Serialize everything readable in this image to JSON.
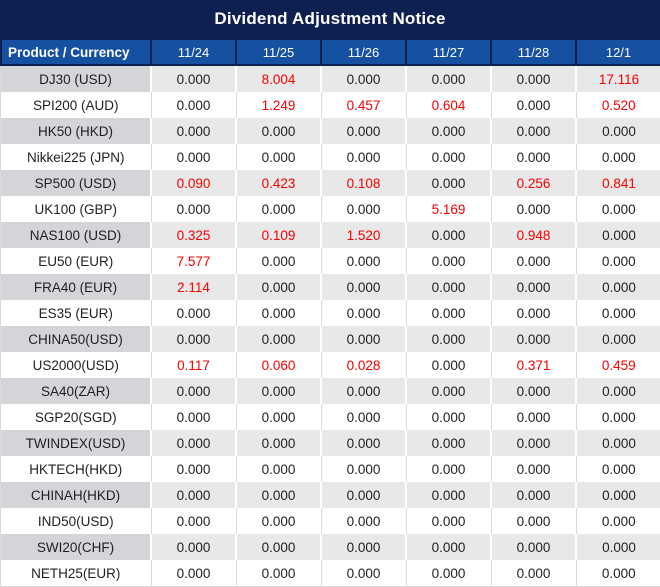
{
  "title": "Dividend Adjustment Notice",
  "table": {
    "product_header": "Product / Currency",
    "date_headers": [
      "11/24",
      "11/25",
      "11/26",
      "11/27",
      "11/28",
      "12/1"
    ],
    "rows": [
      {
        "product": "DJ30 (USD)",
        "values": [
          "0.000",
          "8.004",
          "0.000",
          "0.000",
          "0.000",
          "17.116"
        ]
      },
      {
        "product": "SPI200 (AUD)",
        "values": [
          "0.000",
          "1.249",
          "0.457",
          "0.604",
          "0.000",
          "0.520"
        ]
      },
      {
        "product": "HK50 (HKD)",
        "values": [
          "0.000",
          "0.000",
          "0.000",
          "0.000",
          "0.000",
          "0.000"
        ]
      },
      {
        "product": "Nikkei225 (JPN)",
        "values": [
          "0.000",
          "0.000",
          "0.000",
          "0.000",
          "0.000",
          "0.000"
        ]
      },
      {
        "product": "SP500 (USD)",
        "values": [
          "0.090",
          "0.423",
          "0.108",
          "0.000",
          "0.256",
          "0.841"
        ]
      },
      {
        "product": "UK100 (GBP)",
        "values": [
          "0.000",
          "0.000",
          "0.000",
          "5.169",
          "0.000",
          "0.000"
        ]
      },
      {
        "product": "NAS100 (USD)",
        "values": [
          "0.325",
          "0.109",
          "1.520",
          "0.000",
          "0.948",
          "0.000"
        ]
      },
      {
        "product": "EU50 (EUR)",
        "values": [
          "7.577",
          "0.000",
          "0.000",
          "0.000",
          "0.000",
          "0.000"
        ]
      },
      {
        "product": "FRA40 (EUR)",
        "values": [
          "2.114",
          "0.000",
          "0.000",
          "0.000",
          "0.000",
          "0.000"
        ]
      },
      {
        "product": "ES35 (EUR)",
        "values": [
          "0.000",
          "0.000",
          "0.000",
          "0.000",
          "0.000",
          "0.000"
        ]
      },
      {
        "product": "CHINA50(USD)",
        "values": [
          "0.000",
          "0.000",
          "0.000",
          "0.000",
          "0.000",
          "0.000"
        ]
      },
      {
        "product": "US2000(USD)",
        "values": [
          "0.117",
          "0.060",
          "0.028",
          "0.000",
          "0.371",
          "0.459"
        ]
      },
      {
        "product": "SA40(ZAR)",
        "values": [
          "0.000",
          "0.000",
          "0.000",
          "0.000",
          "0.000",
          "0.000"
        ]
      },
      {
        "product": "SGP20(SGD)",
        "values": [
          "0.000",
          "0.000",
          "0.000",
          "0.000",
          "0.000",
          "0.000"
        ]
      },
      {
        "product": "TWINDEX(USD)",
        "values": [
          "0.000",
          "0.000",
          "0.000",
          "0.000",
          "0.000",
          "0.000"
        ]
      },
      {
        "product": "HKTECH(HKD)",
        "values": [
          "0.000",
          "0.000",
          "0.000",
          "0.000",
          "0.000",
          "0.000"
        ]
      },
      {
        "product": "CHINAH(HKD)",
        "values": [
          "0.000",
          "0.000",
          "0.000",
          "0.000",
          "0.000",
          "0.000"
        ]
      },
      {
        "product": "IND50(USD)",
        "values": [
          "0.000",
          "0.000",
          "0.000",
          "0.000",
          "0.000",
          "0.000"
        ]
      },
      {
        "product": "SWI20(CHF)",
        "values": [
          "0.000",
          "0.000",
          "0.000",
          "0.000",
          "0.000",
          "0.000"
        ]
      },
      {
        "product": "NETH25(EUR)",
        "values": [
          "0.000",
          "0.000",
          "0.000",
          "0.000",
          "0.000",
          "0.000"
        ]
      }
    ]
  },
  "colors": {
    "title_bg": "#0d2050",
    "header_bg": "#1551a0",
    "gray_row_value_bg": "#e8e8e8",
    "gray_row_product_bg": "#d4d5d9",
    "white_row_bg": "#ffffff",
    "nonzero_value_red": "#f60000",
    "text_black": "#1f1f1f",
    "header_text": "#ffffff"
  }
}
